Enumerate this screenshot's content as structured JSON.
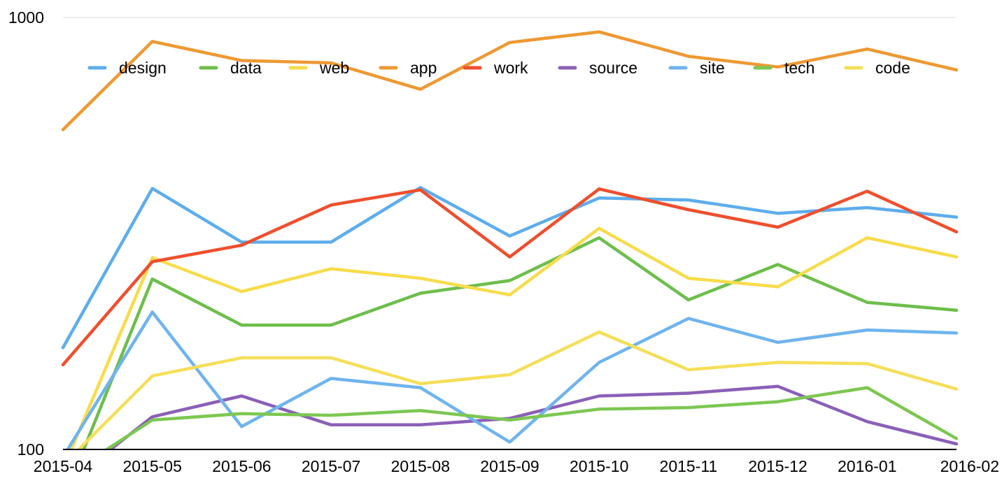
{
  "chart_data": {
    "type": "line",
    "title": "",
    "xlabel": "",
    "ylabel": "",
    "y_scale": "log",
    "ylim": [
      100,
      1000
    ],
    "y_ticks": [
      "100",
      "1000"
    ],
    "grid": "horizontal lines at y-axis ticks",
    "legend_position": "top",
    "categories": [
      "2015-04",
      "2015-05",
      "2015-06",
      "2015-07",
      "2015-08",
      "2015-09",
      "2015-10",
      "2015-11",
      "2015-12",
      "2016-01",
      "2016-02"
    ],
    "series": [
      {
        "name": "design",
        "color": "#5DADEC",
        "values": [
          172,
          402,
          302,
          302,
          404,
          312,
          382,
          378,
          352,
          363,
          345
        ]
      },
      {
        "name": "data",
        "color": "#6DBE4B",
        "values": [
          76,
          248,
          194,
          194,
          230,
          246,
          309,
          222,
          268,
          219,
          210
        ]
      },
      {
        "name": "web",
        "color": "#F7DC4B",
        "values": [
          90,
          278,
          232,
          262,
          249,
          228,
          325,
          249,
          238,
          309,
          279
        ]
      },
      {
        "name": "app",
        "color": "#EE9933",
        "values": [
          550,
          880,
          795,
          785,
          682,
          875,
          926,
          813,
          768,
          845,
          756
        ]
      },
      {
        "name": "work",
        "color": "#EE4F2E",
        "values": [
          157,
          272,
          297,
          368,
          399,
          279,
          401,
          359,
          327,
          396,
          319
        ]
      },
      {
        "name": "source",
        "color": "#8B5FB8",
        "values": [
          82,
          119,
          133,
          114,
          114,
          118,
          133,
          135,
          140,
          116,
          103
        ]
      },
      {
        "name": "site",
        "color": "#6EB4EE",
        "values": [
          96,
          208,
          113,
          146,
          139,
          104,
          159,
          201,
          177,
          189,
          186
        ]
      },
      {
        "name": "tech",
        "color": "#7CC751",
        "values": [
          86,
          117,
          121,
          120,
          123,
          117,
          124,
          125,
          129,
          139,
          106
        ]
      },
      {
        "name": "code",
        "color": "#F5DF59",
        "values": [
          92,
          148,
          163,
          163,
          142,
          149,
          187,
          153,
          159,
          158,
          138
        ]
      }
    ]
  }
}
